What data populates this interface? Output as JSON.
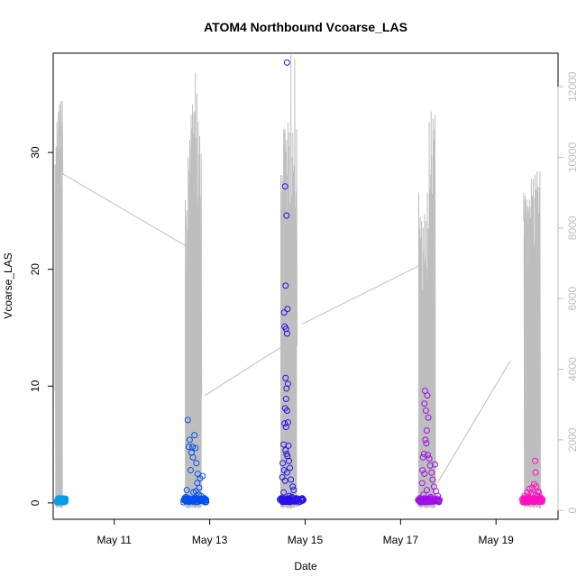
{
  "chart_data": {
    "type": "scatter",
    "title": "ATOM4 Northbound Vcoarse_LAS",
    "xlabel": "Date",
    "ylabel": "Vcoarse_LAS",
    "ylim": [
      -1.4,
      38.5
    ],
    "y_ticks": [
      0,
      10,
      20,
      30
    ],
    "x_range_days": [
      9.72,
      20.3
    ],
    "x_ticks": [
      {
        "day": 11,
        "label": "May 11"
      },
      {
        "day": 13,
        "label": "May 13"
      },
      {
        "day": 15,
        "label": "May 15"
      },
      {
        "day": 17,
        "label": "May 17"
      },
      {
        "day": 19,
        "label": "May 19"
      }
    ],
    "secondary_axis": {
      "side": "right",
      "color": "#bebebe",
      "ylim": [
        -250,
        12950
      ],
      "ticks": [
        0,
        2000,
        4000,
        6000,
        8000,
        10000,
        12000
      ]
    },
    "series": [
      {
        "name": "Vcoarse_LAS points",
        "marker": "open-circle",
        "clusters": [
          {
            "color": "#00a0e8",
            "start": 9.8,
            "end": 9.98,
            "base": 0.05,
            "points": [
              [
                9.84,
                0.1
              ],
              [
                9.86,
                0.4
              ],
              [
                9.88,
                0.2
              ],
              [
                9.9,
                0.3
              ],
              [
                9.92,
                0.1
              ],
              [
                9.95,
                0.2
              ]
            ]
          },
          {
            "color": "#0050f0",
            "start": 12.45,
            "end": 12.94,
            "base": 0.05,
            "points": [
              [
                12.54,
                7.1
              ],
              [
                12.58,
                5.4
              ],
              [
                12.56,
                4.8
              ],
              [
                12.62,
                4.3
              ],
              [
                12.64,
                4.8
              ],
              [
                12.68,
                5.8
              ],
              [
                12.7,
                4.7
              ],
              [
                12.65,
                3.9
              ],
              [
                12.72,
                3.4
              ],
              [
                12.75,
                2.5
              ],
              [
                12.8,
                2.1
              ],
              [
                12.85,
                2.3
              ],
              [
                12.6,
                2.8
              ],
              [
                12.74,
                1.7
              ],
              [
                12.78,
                1.3
              ],
              [
                12.52,
                1.1
              ],
              [
                12.66,
                0.9
              ],
              [
                12.82,
                0.6
              ],
              [
                12.88,
                0.4
              ],
              [
                12.5,
                0.5
              ],
              [
                12.71,
                1.0
              ],
              [
                12.77,
                0.7
              ]
            ]
          },
          {
            "color": "#2a12e8",
            "start": 14.45,
            "end": 14.97,
            "base": 0.05,
            "points": [
              [
                14.62,
                37.7
              ],
              [
                14.58,
                27.1
              ],
              [
                14.61,
                24.6
              ],
              [
                14.59,
                18.6
              ],
              [
                14.63,
                16.6
              ],
              [
                14.56,
                16.3
              ],
              [
                14.57,
                15.1
              ],
              [
                14.6,
                14.9
              ],
              [
                14.62,
                14.5
              ],
              [
                14.59,
                10.7
              ],
              [
                14.64,
                10.2
              ],
              [
                14.61,
                9.8
              ],
              [
                14.6,
                8.9
              ],
              [
                14.58,
                8.1
              ],
              [
                14.62,
                7.9
              ],
              [
                14.57,
                6.8
              ],
              [
                14.64,
                6.9
              ],
              [
                14.6,
                6.5
              ],
              [
                14.55,
                5.0
              ],
              [
                14.65,
                4.9
              ],
              [
                14.61,
                4.2
              ],
              [
                14.59,
                4.5
              ],
              [
                14.63,
                4.0
              ],
              [
                14.53,
                3.4
              ],
              [
                14.66,
                3.6
              ],
              [
                14.68,
                3.0
              ],
              [
                14.56,
                2.8
              ],
              [
                14.62,
                2.6
              ],
              [
                14.52,
                2.2
              ],
              [
                14.7,
                2.0
              ],
              [
                14.58,
                1.9
              ],
              [
                14.74,
                1.4
              ],
              [
                14.76,
                1.1
              ],
              [
                14.55,
                0.9
              ],
              [
                14.67,
                0.6
              ],
              [
                14.72,
                0.5
              ],
              [
                14.5,
                0.4
              ],
              [
                14.8,
                0.3
              ]
            ]
          },
          {
            "color": "#a010e8",
            "start": 17.35,
            "end": 17.82,
            "base": 0.05,
            "points": [
              [
                17.51,
                9.6
              ],
              [
                17.56,
                9.2
              ],
              [
                17.5,
                8.5
              ],
              [
                17.53,
                7.9
              ],
              [
                17.58,
                7.3
              ],
              [
                17.55,
                6.2
              ],
              [
                17.52,
                5.4
              ],
              [
                17.54,
                5.1
              ],
              [
                17.49,
                4.2
              ],
              [
                17.57,
                4.1
              ],
              [
                17.6,
                3.8
              ],
              [
                17.47,
                3.9
              ],
              [
                17.62,
                3.2
              ],
              [
                17.46,
                2.8
              ],
              [
                17.65,
                2.6
              ],
              [
                17.72,
                3.3
              ],
              [
                17.5,
                2.5
              ],
              [
                17.67,
                2.0
              ],
              [
                17.45,
                1.7
              ],
              [
                17.7,
                1.4
              ],
              [
                17.74,
                1.0
              ],
              [
                17.55,
                1.1
              ],
              [
                17.78,
                0.6
              ],
              [
                17.48,
                0.7
              ],
              [
                17.63,
                0.5
              ],
              [
                17.4,
                0.4
              ]
            ]
          },
          {
            "color": "#ff10c0",
            "start": 19.55,
            "end": 19.98,
            "base": 0.05,
            "points": [
              [
                19.82,
                3.6
              ],
              [
                19.83,
                2.6
              ],
              [
                19.8,
                1.6
              ],
              [
                19.76,
                1.3
              ],
              [
                19.84,
                1.4
              ],
              [
                19.7,
                1.2
              ],
              [
                19.88,
                1.0
              ],
              [
                19.65,
                0.9
              ],
              [
                19.73,
                0.8
              ],
              [
                19.9,
                0.9
              ],
              [
                19.6,
                0.6
              ],
              [
                19.78,
                0.7
              ],
              [
                19.86,
                0.6
              ],
              [
                19.68,
                0.5
              ],
              [
                19.58,
                0.4
              ],
              [
                19.93,
                0.5
              ]
            ]
          }
        ]
      },
      {
        "name": "secondary trace",
        "axis": "right",
        "color": "#bebebe",
        "gap_lines": [
          [
            [
              9.91,
              9540
            ],
            [
              12.73,
              7310
            ]
          ],
          [
            [
              12.9,
              3260
            ],
            [
              14.55,
              4670
            ]
          ],
          [
            [
              14.94,
              5280
            ],
            [
              17.4,
              6940
            ]
          ],
          [
            [
              17.77,
              770
            ],
            [
              19.3,
              4240
            ]
          ]
        ],
        "bursts": [
          {
            "start": 9.72,
            "end": 9.92,
            "spikes": [
              [
                9.76,
                9800,
                3400
              ],
              [
                9.78,
                10300,
                1400
              ],
              [
                9.8,
                11000,
                9500
              ],
              [
                9.83,
                11300,
                9800
              ],
              [
                9.85,
                11500,
                10600
              ],
              [
                9.88,
                11600,
                9700
              ],
              [
                9.91,
                11600,
                9540
              ]
            ]
          },
          {
            "start": 12.45,
            "end": 12.94,
            "spikes": [
              [
                12.49,
                8800,
                100
              ],
              [
                12.52,
                8500,
                50
              ],
              [
                12.55,
                10000,
                80
              ],
              [
                12.58,
                10500,
                60
              ],
              [
                12.61,
                11200,
                100
              ],
              [
                12.64,
                11500,
                80
              ],
              [
                12.68,
                11300,
                60
              ],
              [
                12.7,
                12400,
                100
              ],
              [
                12.73,
                11800,
                80
              ],
              [
                12.76,
                11000,
                60
              ],
              [
                12.79,
                10600,
                80
              ],
              [
                12.82,
                10100,
                3260
              ]
            ]
          },
          {
            "start": 14.45,
            "end": 14.97,
            "spikes": [
              [
                14.49,
                9500,
                100
              ],
              [
                14.52,
                9500,
                60
              ],
              [
                14.55,
                10800,
                80
              ],
              [
                14.58,
                10800,
                100
              ],
              [
                14.61,
                10500,
                60
              ],
              [
                14.64,
                11000,
                80
              ],
              [
                14.67,
                10700,
                100
              ],
              [
                14.7,
                12900,
                60
              ],
              [
                14.74,
                10700,
                80
              ],
              [
                14.78,
                12800,
                3100
              ],
              [
                14.82,
                10800,
                4670
              ]
            ]
          },
          {
            "start": 17.35,
            "end": 17.82,
            "spikes": [
              [
                17.38,
                9000,
                100
              ],
              [
                17.41,
                8300,
                60
              ],
              [
                17.44,
                8200,
                80
              ],
              [
                17.47,
                8000,
                100
              ],
              [
                17.5,
                8400,
                60
              ],
              [
                17.53,
                8200,
                80
              ],
              [
                17.56,
                9000,
                100
              ],
              [
                17.6,
                11000,
                80
              ],
              [
                17.64,
                11300,
                60
              ],
              [
                17.68,
                11100,
                80
              ],
              [
                17.72,
                11200,
                770
              ]
            ]
          },
          {
            "start": 19.55,
            "end": 19.98,
            "spikes": [
              [
                19.58,
                9000,
                8200
              ],
              [
                19.61,
                8900,
                8100
              ],
              [
                19.64,
                8800,
                8000
              ],
              [
                19.67,
                8600,
                8400
              ],
              [
                19.7,
                8800,
                100
              ],
              [
                19.74,
                9400,
                80
              ],
              [
                19.78,
                9400,
                60
              ],
              [
                19.82,
                9500,
                100
              ],
              [
                19.86,
                9600,
                80
              ],
              [
                19.92,
                9600,
                60
              ]
            ]
          }
        ]
      }
    ]
  }
}
